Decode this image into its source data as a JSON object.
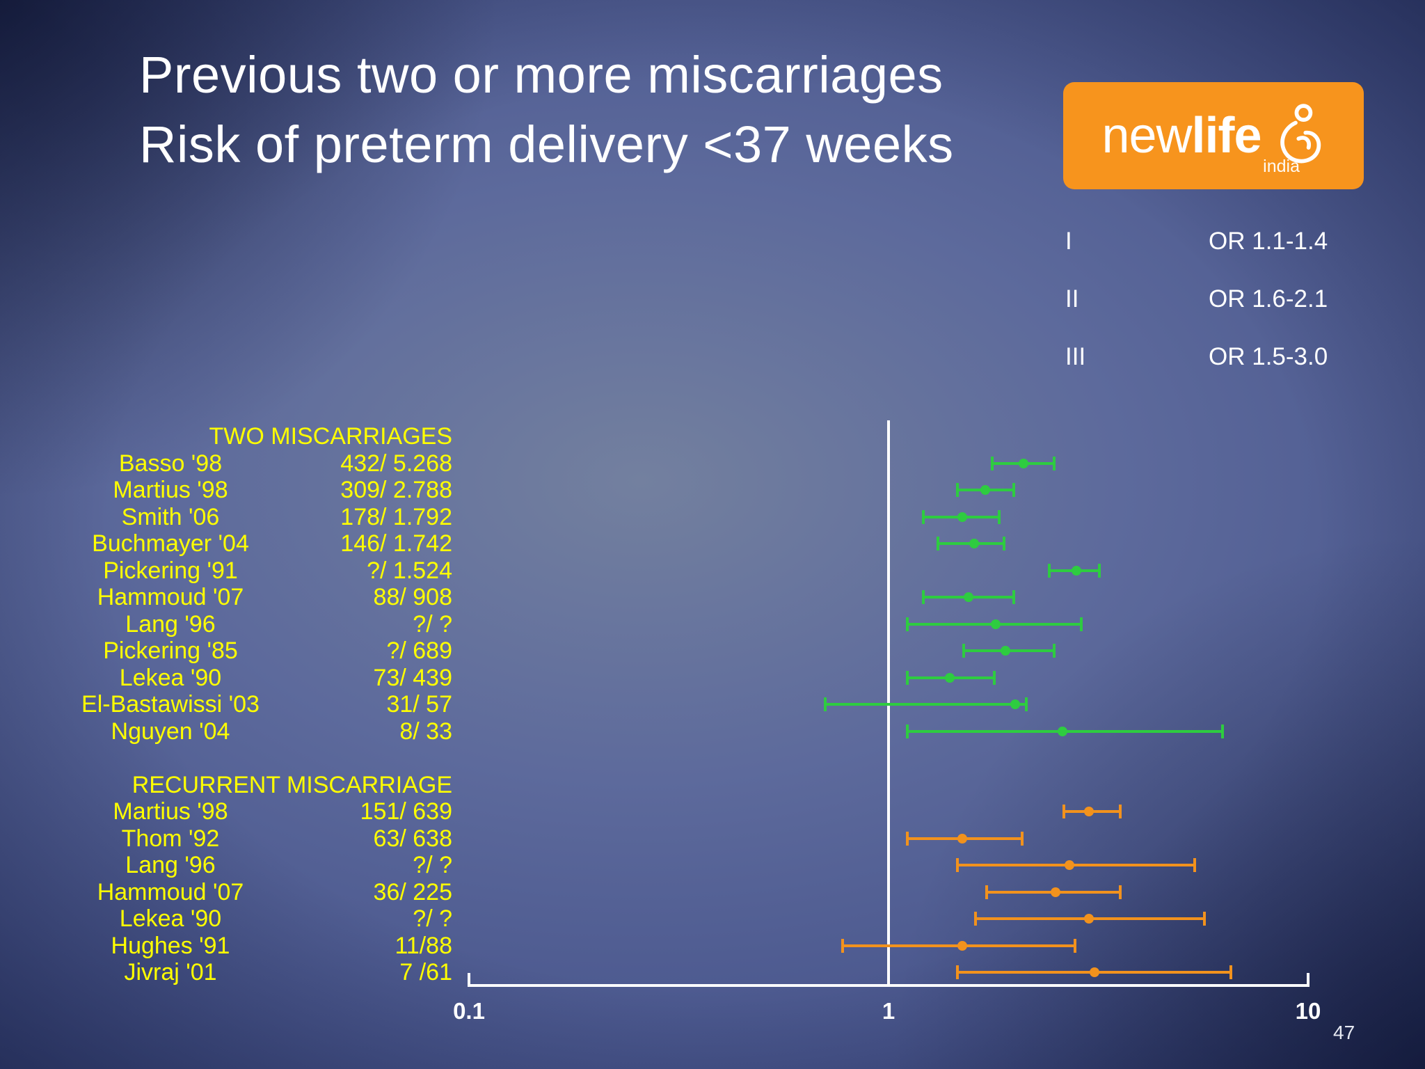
{
  "slide": {
    "title_line1": "Previous two or more miscarriages",
    "title_line2": "Risk of preterm delivery <37 weeks",
    "page_number": "47"
  },
  "logo": {
    "brand_new": "new",
    "brand_life": "life",
    "brand_sub": "india",
    "bg_color": "#f7941d"
  },
  "legend": {
    "rows": [
      {
        "label": "I",
        "value": "OR 1.1-1.4"
      },
      {
        "label": "II",
        "value": "OR 1.6-2.1"
      },
      {
        "label": "III",
        "value": "OR 1.5-3.0"
      }
    ]
  },
  "chart_data": {
    "type": "scatter",
    "variant": "forest-plot",
    "title": "Previous two or more miscarriages — Risk of preterm delivery <37 weeks",
    "x_scale": "log",
    "x_range": [
      0.1,
      10
    ],
    "x_ticks": [
      "0.1",
      "1",
      "10"
    ],
    "x_tick_values": [
      0.1,
      1,
      10
    ],
    "reference_line_x": 1,
    "colors": {
      "two_miscarriages": "#2ecc40",
      "recurrent_miscarriage": "#f2921d"
    },
    "groups": [
      {
        "header": "TWO MISCARRIAGES",
        "color": "#2ecc40",
        "studies": [
          {
            "name": "Basso '98",
            "counts": "432/ 5.268",
            "or": 2.1,
            "ci": [
              1.75,
              2.5
            ]
          },
          {
            "name": "Martius '98",
            "counts": "309/ 2.788",
            "or": 1.7,
            "ci": [
              1.45,
              2.0
            ]
          },
          {
            "name": "Smith '06",
            "counts": "178/ 1.792",
            "or": 1.5,
            "ci": [
              1.2,
              1.85
            ]
          },
          {
            "name": "Buchmayer '04",
            "counts": "146/ 1.742",
            "or": 1.6,
            "ci": [
              1.3,
              1.9
            ]
          },
          {
            "name": "Pickering '91",
            "counts": "?/ 1.524",
            "or": 2.8,
            "ci": [
              2.4,
              3.2
            ]
          },
          {
            "name": "Hammoud '07",
            "counts": "88/ 908",
            "or": 1.55,
            "ci": [
              1.2,
              2.0
            ]
          },
          {
            "name": "Lang '96",
            "counts": "?/ ?",
            "or": 1.8,
            "ci": [
              1.1,
              2.9
            ]
          },
          {
            "name": "Pickering '85",
            "counts": "?/ 689",
            "or": 1.9,
            "ci": [
              1.5,
              2.5
            ]
          },
          {
            "name": "Lekea '90",
            "counts": "73/ 439",
            "or": 1.4,
            "ci": [
              1.1,
              1.8
            ]
          },
          {
            "name": "El-Bastawissi '03",
            "counts": "31/ 57",
            "or": 2.0,
            "ci": [
              0.7,
              2.15
            ]
          },
          {
            "name": "Nguyen '04",
            "counts": "8/ 33",
            "or": 2.6,
            "ci": [
              1.1,
              6.3
            ]
          }
        ]
      },
      {
        "header": "RECURRENT MISCARRIAGE",
        "color": "#f2921d",
        "studies": [
          {
            "name": "Martius '98",
            "counts": "151/ 639",
            "or": 3.0,
            "ci": [
              2.6,
              3.6
            ]
          },
          {
            "name": "Thom '92",
            "counts": "63/ 638",
            "or": 1.5,
            "ci": [
              1.1,
              2.1
            ]
          },
          {
            "name": "Lang '96",
            "counts": "?/ ?",
            "or": 2.7,
            "ci": [
              1.45,
              5.4
            ]
          },
          {
            "name": "Hammoud '07",
            "counts": "36/ 225",
            "or": 2.5,
            "ci": [
              1.7,
              3.6
            ]
          },
          {
            "name": "Lekea '90",
            "counts": "?/ ?",
            "or": 3.0,
            "ci": [
              1.6,
              5.7
            ]
          },
          {
            "name": "Hughes '91",
            "counts": "11/88",
            "or": 1.5,
            "ci": [
              0.77,
              2.8
            ]
          },
          {
            "name": "Jivraj '01",
            "counts": "7 /61",
            "or": 3.1,
            "ci": [
              1.45,
              6.6
            ]
          }
        ]
      }
    ]
  }
}
